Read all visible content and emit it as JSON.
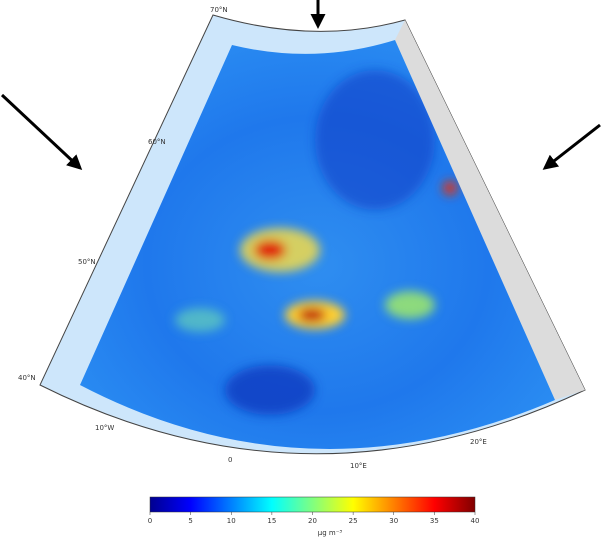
{
  "graticule_labels": [
    "70°N",
    "60°N",
    "50°N",
    "40°N",
    "10°W",
    "0",
    "10°E",
    "20°E"
  ],
  "colorbar": {
    "lim": [
      0,
      40
    ],
    "ticks": [
      0,
      5,
      10,
      15,
      20,
      25,
      30,
      35,
      40
    ],
    "colors": [
      "#00008f",
      "#0000ff",
      "#0080ff",
      "#00ffff",
      "#80ff80",
      "#ffff00",
      "#ff8000",
      "#ff0000",
      "#800000"
    ],
    "unit": "μg m⁻³"
  }
}
